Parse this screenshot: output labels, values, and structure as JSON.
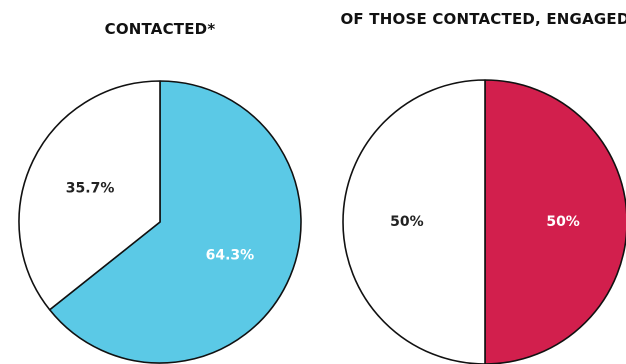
{
  "chart_data": [
    {
      "type": "pie",
      "title": "CONTACTED*",
      "slices": [
        {
          "label": "64.3%",
          "value": 64.3,
          "color": "#5BC9E6",
          "label_color": "#ffffff"
        },
        {
          "label": "35.7%",
          "value": 35.7,
          "color": "#ffffff",
          "label_color": "#222222"
        }
      ]
    },
    {
      "type": "pie",
      "title": "OF THOSE CONTACTED, ENGAGED",
      "slices": [
        {
          "label": "50%",
          "value": 50,
          "color": "#D21F4D",
          "label_color": "#ffffff"
        },
        {
          "label": "50%",
          "value": 50,
          "color": "#ffffff",
          "label_color": "#222222"
        }
      ]
    }
  ]
}
